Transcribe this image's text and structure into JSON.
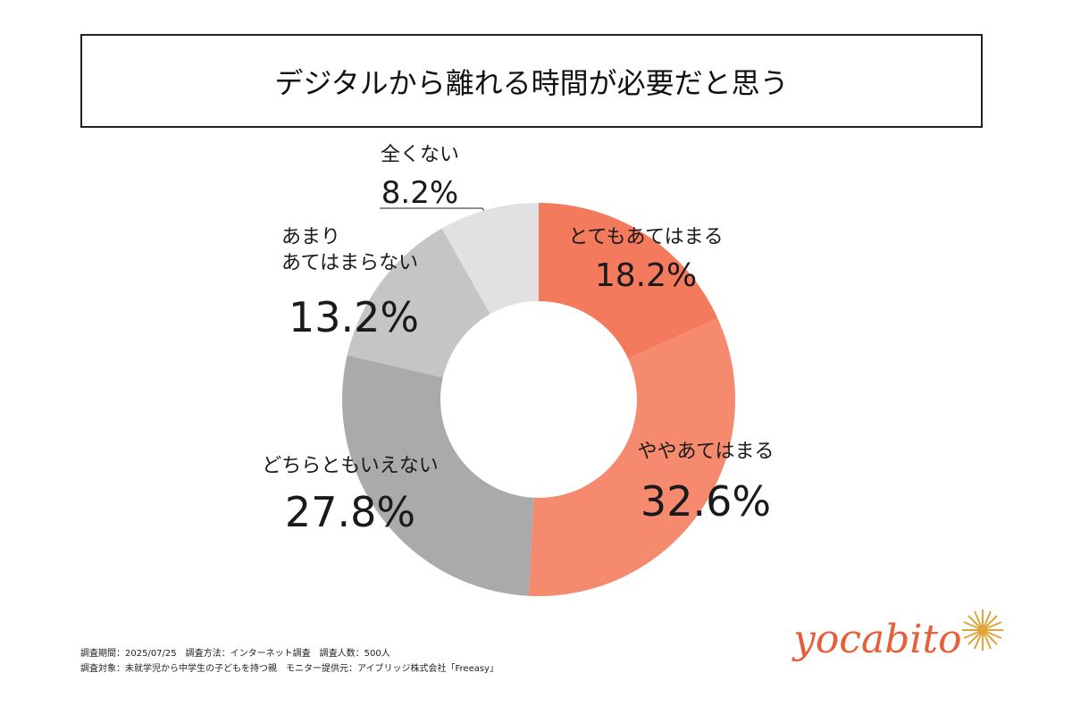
{
  "chart_data": {
    "type": "donut",
    "title": "デジタルから離れる時間が必要だと思う",
    "categories": [
      "とてもあてはまる",
      "ややあてはまる",
      "どちらともいえない",
      "あまり\nあてはまらない",
      "全くない"
    ],
    "values": [
      18.2,
      32.6,
      27.8,
      13.2,
      8.2
    ],
    "value_labels": [
      "18.2%",
      "32.6%",
      "27.8%",
      "13.2%",
      "8.2%"
    ],
    "colors": [
      "#f47a5e",
      "#f68a6f",
      "#aaa9ac",
      "#c5c4c7",
      "#e1e0e3"
    ]
  },
  "footer": [
    "調査期間：2025/07/25　調査方法：インターネット調査　調査人数：500人",
    "調査対象：未就学児から中学生の子どもを持つ親　モニター提供元：アイブリッジ株式会社「Freeasy」"
  ],
  "logo": "yocabito"
}
